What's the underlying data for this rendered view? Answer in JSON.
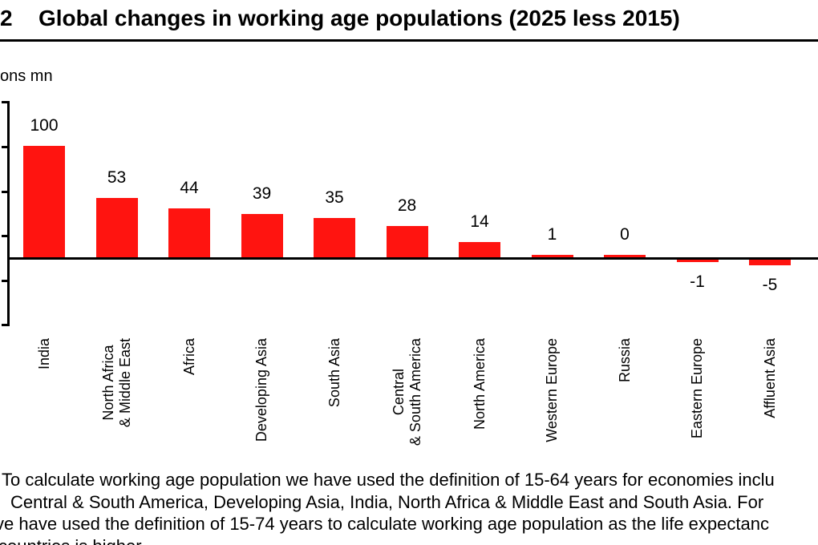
{
  "header": {
    "figure_number": "2",
    "title": "Global changes in working age populations (2025 less 2015)"
  },
  "chart": {
    "unit_label": "ons mn",
    "bar_color": "#ff1410",
    "axis_color": "#000000"
  },
  "chart_data": {
    "type": "bar",
    "title": "Global changes in working age populations (2025 less 2015)",
    "ylabel": "ons mn",
    "categories": [
      "India",
      "North Africa\n& Middle East",
      "Africa",
      "Developing Asia",
      "South Asia",
      "Central\n& South America",
      "North America",
      "Western Europe",
      "Russia",
      "Eastern Europe",
      "Affluent Asia"
    ],
    "values": [
      100,
      53,
      44,
      39,
      35,
      28,
      14,
      1,
      0,
      -1,
      -5
    ],
    "data_labels": [
      "100",
      "53",
      "44",
      "39",
      "35",
      "28",
      "14",
      "1",
      "0",
      "-1",
      "-5"
    ],
    "ylim": [
      -60,
      140
    ],
    "yticks": [
      -60,
      -20,
      20,
      60,
      100,
      140
    ],
    "ytick_labels_visible": false,
    "grid": false,
    "legend": false,
    "bar_color": "#ff1410"
  },
  "footnote": {
    "lines": [
      "To calculate working age population we have used the definition of 15-64 years for economies inclu",
      "Central & South America, Developing Asia, India, North Africa & Middle East and South Asia. For",
      "ve have used the definition of 15-74 years to calculate working age population as the life expectanc",
      "countries is higher"
    ]
  }
}
